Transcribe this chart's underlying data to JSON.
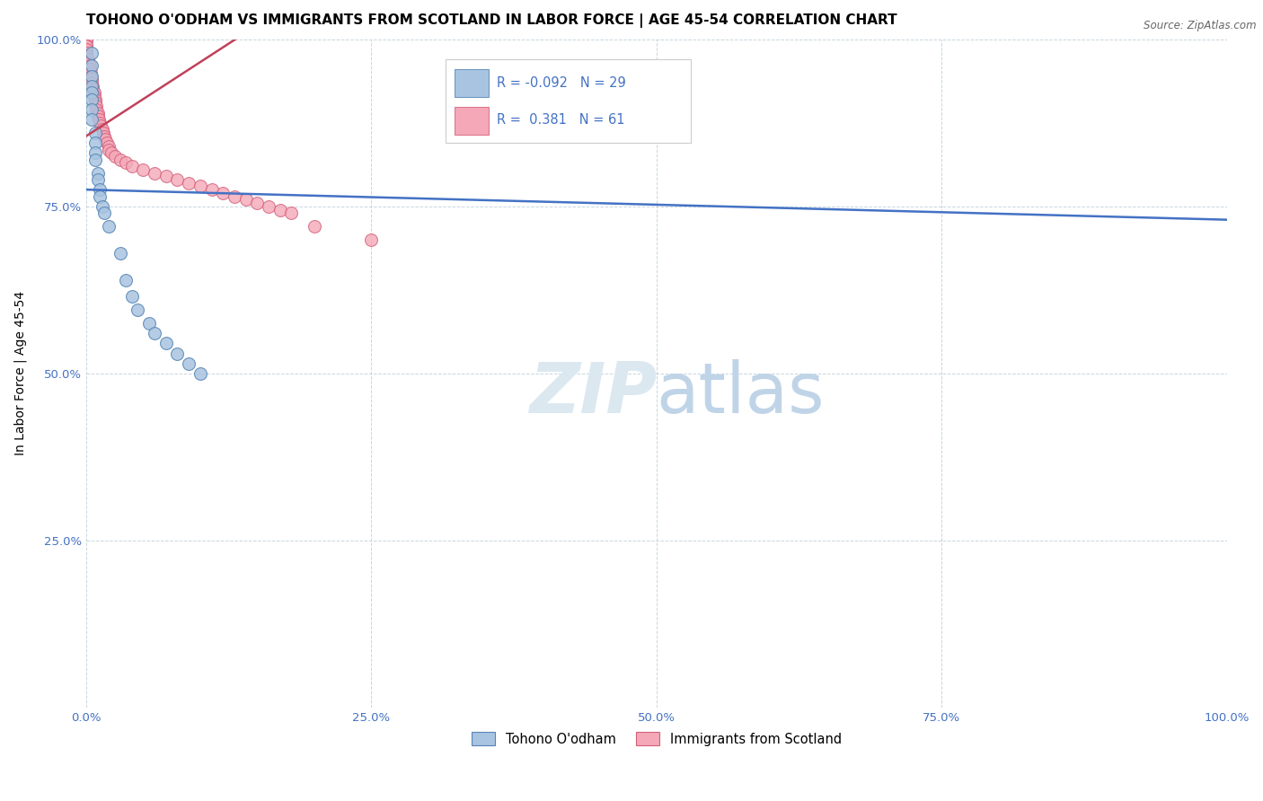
{
  "title": "TOHONO O'ODHAM VS IMMIGRANTS FROM SCOTLAND IN LABOR FORCE | AGE 45-54 CORRELATION CHART",
  "source": "Source: ZipAtlas.com",
  "ylabel": "In Labor Force | Age 45-54",
  "xlim": [
    0.0,
    1.0
  ],
  "ylim": [
    0.0,
    1.0
  ],
  "xtick_labels": [
    "0.0%",
    "25.0%",
    "50.0%",
    "75.0%",
    "100.0%"
  ],
  "xtick_vals": [
    0.0,
    0.25,
    0.5,
    0.75,
    1.0
  ],
  "ytick_labels": [
    "25.0%",
    "50.0%",
    "75.0%",
    "100.0%"
  ],
  "ytick_vals": [
    0.25,
    0.5,
    0.75,
    1.0
  ],
  "blue_R": "-0.092",
  "blue_N": "29",
  "pink_R": "0.381",
  "pink_N": "61",
  "blue_color": "#a8c4e0",
  "pink_color": "#f4a8b8",
  "blue_edge_color": "#5585b5",
  "pink_edge_color": "#d4607a",
  "blue_line_color": "#4472c4",
  "pink_line_color": "#c0415a",
  "watermark_color": "#dce8f0",
  "tick_color": "#4472c4",
  "blue_line_y0": 0.775,
  "blue_line_y1": 0.73,
  "pink_line_x0": 0.0,
  "pink_line_y0": 0.855,
  "pink_line_x1": 0.14,
  "pink_line_y1": 1.01,
  "blue_scatter_x": [
    0.005,
    0.005,
    0.005,
    0.005,
    0.005,
    0.005,
    0.005,
    0.005,
    0.008,
    0.008,
    0.008,
    0.008,
    0.01,
    0.01,
    0.012,
    0.012,
    0.014,
    0.016,
    0.02,
    0.03,
    0.035,
    0.04,
    0.045,
    0.055,
    0.06,
    0.07,
    0.08,
    0.09,
    0.1
  ],
  "blue_scatter_y": [
    0.98,
    0.96,
    0.945,
    0.93,
    0.92,
    0.91,
    0.895,
    0.88,
    0.86,
    0.845,
    0.83,
    0.82,
    0.8,
    0.79,
    0.775,
    0.765,
    0.75,
    0.74,
    0.72,
    0.68,
    0.64,
    0.615,
    0.595,
    0.575,
    0.56,
    0.545,
    0.53,
    0.515,
    0.5
  ],
  "pink_scatter_x": [
    0.0,
    0.0,
    0.0,
    0.0,
    0.0,
    0.0,
    0.0,
    0.0,
    0.0,
    0.0,
    0.0,
    0.0,
    0.002,
    0.002,
    0.003,
    0.003,
    0.004,
    0.004,
    0.005,
    0.005,
    0.006,
    0.006,
    0.007,
    0.007,
    0.008,
    0.008,
    0.009,
    0.009,
    0.01,
    0.01,
    0.011,
    0.012,
    0.013,
    0.014,
    0.015,
    0.016,
    0.017,
    0.018,
    0.02,
    0.02,
    0.022,
    0.025,
    0.03,
    0.035,
    0.04,
    0.05,
    0.06,
    0.07,
    0.08,
    0.09,
    0.1,
    0.11,
    0.12,
    0.13,
    0.14,
    0.15,
    0.16,
    0.17,
    0.18,
    0.2,
    0.25
  ],
  "pink_scatter_y": [
    1.0,
    1.0,
    1.0,
    1.0,
    1.0,
    1.0,
    0.99,
    0.99,
    0.99,
    0.985,
    0.98,
    0.975,
    0.97,
    0.965,
    0.96,
    0.955,
    0.95,
    0.945,
    0.94,
    0.935,
    0.93,
    0.925,
    0.92,
    0.915,
    0.91,
    0.905,
    0.9,
    0.895,
    0.89,
    0.885,
    0.88,
    0.875,
    0.87,
    0.865,
    0.86,
    0.855,
    0.85,
    0.845,
    0.84,
    0.835,
    0.83,
    0.825,
    0.82,
    0.815,
    0.81,
    0.805,
    0.8,
    0.795,
    0.79,
    0.785,
    0.78,
    0.775,
    0.77,
    0.765,
    0.76,
    0.755,
    0.75,
    0.745,
    0.74,
    0.72,
    0.7
  ],
  "title_fontsize": 11,
  "label_fontsize": 10,
  "tick_fontsize": 9.5,
  "marker_size": 100
}
